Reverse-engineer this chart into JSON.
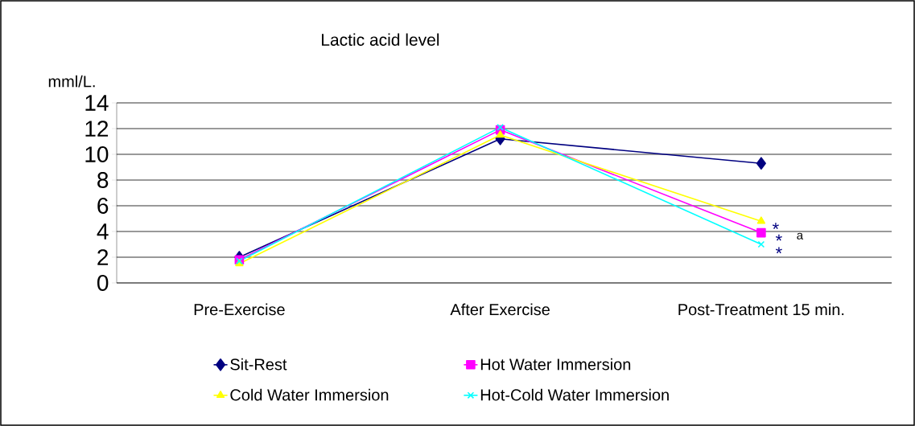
{
  "chart_data": {
    "type": "line",
    "title": "Lactic acid level",
    "ylabel": "mml/L.",
    "categories": [
      "Pre-Exercise",
      "After Exercise",
      "Post-Treatment 15 min."
    ],
    "series": [
      {
        "name": "Sit-Rest",
        "color": "#000080",
        "marker": "diamond",
        "values": [
          2.0,
          11.2,
          9.3
        ]
      },
      {
        "name": "Hot Water Immersion",
        "color": "#ff00ff",
        "marker": "square",
        "values": [
          1.8,
          11.9,
          3.9
        ]
      },
      {
        "name": "Cold Water Immersion",
        "color": "#ffff00",
        "marker": "triangle",
        "values": [
          1.5,
          11.5,
          4.8
        ]
      },
      {
        "name": "Hot-Cold Water Immersion",
        "color": "#00ffff",
        "marker": "cross",
        "values": [
          1.7,
          12.1,
          3.0
        ]
      }
    ],
    "ylim": [
      0,
      14
    ],
    "yticks": [
      0,
      2,
      4,
      6,
      8,
      10,
      12,
      14
    ],
    "grid": "y",
    "legend": "bottom",
    "annotations": [
      "*",
      "*",
      "*",
      "a"
    ]
  }
}
